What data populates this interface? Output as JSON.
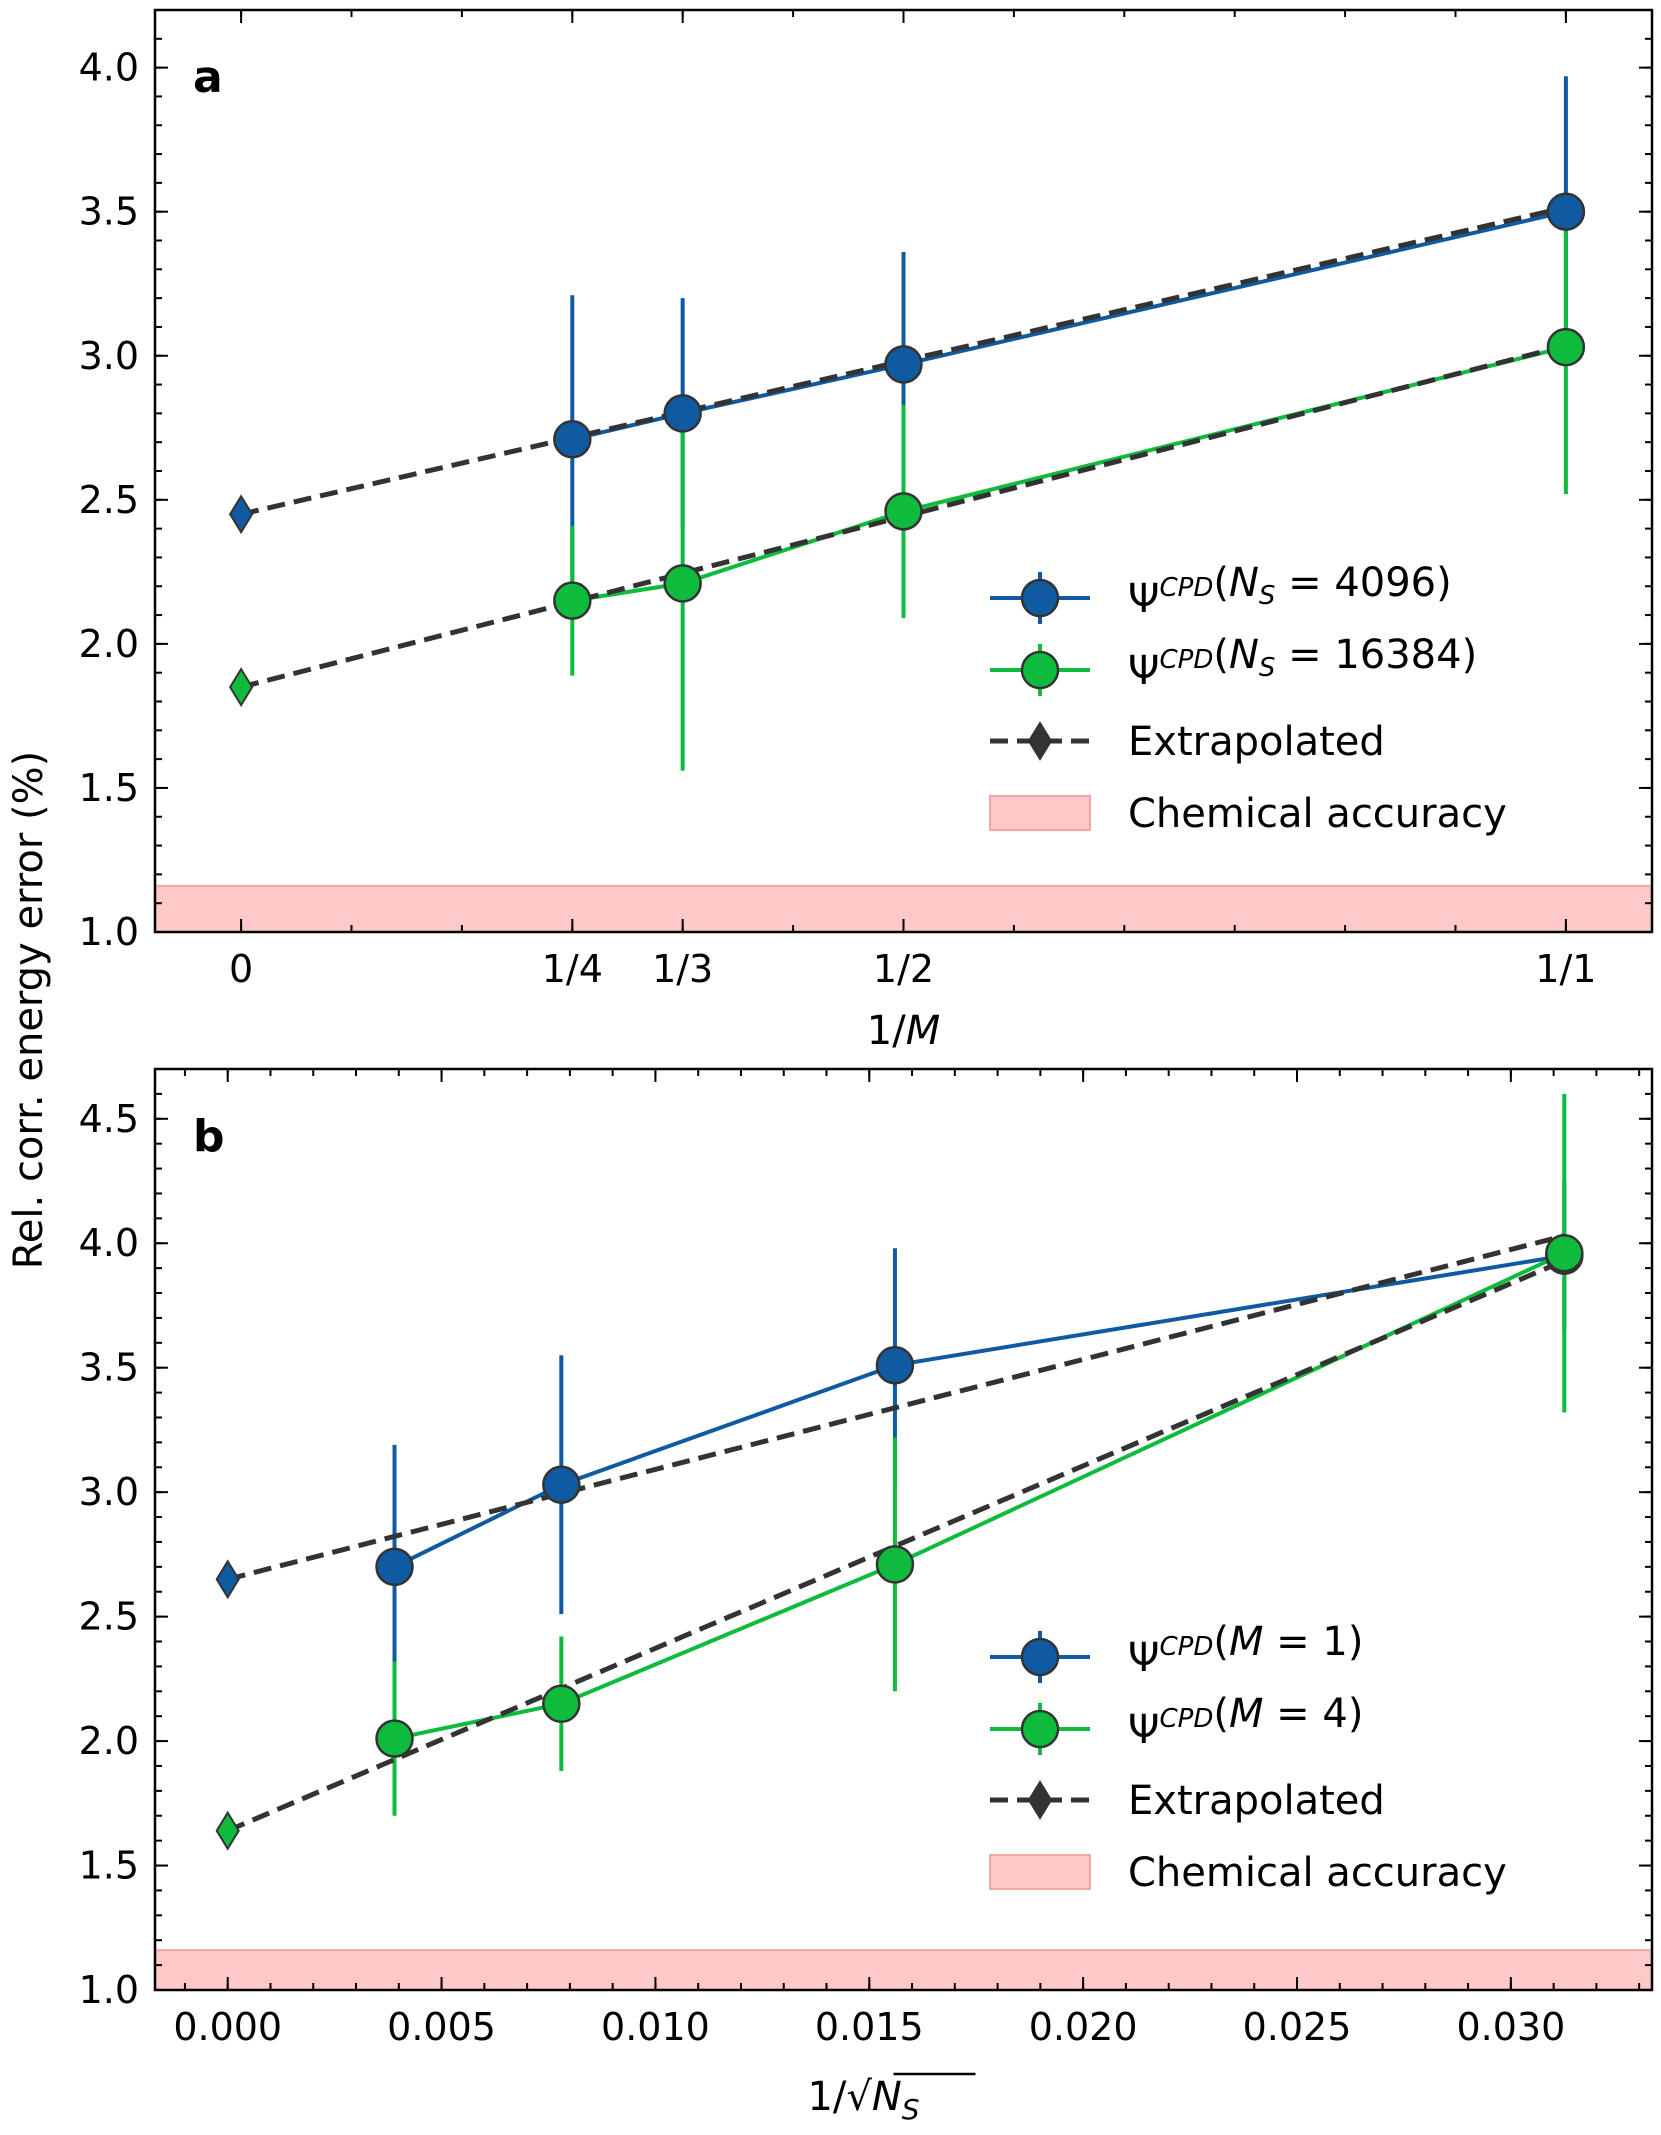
{
  "figure": {
    "shared_ylabel": "Rel. corr. energy error (%)"
  },
  "chart_data": [
    {
      "panel_label": "a",
      "type": "line",
      "xlabel": "1/M",
      "xlim": [
        -0.065,
        1.065
      ],
      "ylim": [
        1.0,
        4.2
      ],
      "xticks": [
        {
          "value": 0,
          "label": "0"
        },
        {
          "value": 0.25,
          "label": "1/4"
        },
        {
          "value": 0.3333,
          "label": "1/3"
        },
        {
          "value": 0.5,
          "label": "1/2"
        },
        {
          "value": 1.0,
          "label": "1/1"
        }
      ],
      "xminor_step": 0.0833333,
      "yticks": [
        1.0,
        1.5,
        2.0,
        2.5,
        3.0,
        3.5,
        4.0
      ],
      "ytick_labels": [
        "1.0",
        "1.5",
        "2.0",
        "2.5",
        "3.0",
        "3.5",
        "4.0"
      ],
      "yminor_step": 0.1,
      "series": [
        {
          "name_base": "Ψ",
          "name_sup": "CPD",
          "name_args": "(N_S = 4096)",
          "color": "#0f5aa0",
          "x": [
            0.25,
            0.3333,
            0.5,
            1.0
          ],
          "y": [
            2.71,
            2.8,
            2.97,
            3.5
          ],
          "err": [
            0.5,
            0.4,
            0.39,
            0.47
          ]
        },
        {
          "name_base": "Ψ",
          "name_sup": "CPD",
          "name_args": "(N_S = 16384)",
          "color": "#0fbb3c",
          "x": [
            0.25,
            0.3333,
            0.5,
            1.0
          ],
          "y": [
            2.15,
            2.21,
            2.46,
            3.03
          ],
          "err": [
            0.26,
            0.65,
            0.37,
            0.51
          ]
        }
      ],
      "fits": [
        {
          "x": [
            0,
            0.25,
            0.3333,
            0.5,
            1.0
          ],
          "y": [
            2.45,
            2.716,
            2.805,
            2.982,
            3.515
          ]
        },
        {
          "x": [
            0,
            0.25,
            0.3333,
            0.5,
            1.0
          ],
          "y": [
            1.85,
            2.146,
            2.245,
            2.442,
            3.035
          ]
        }
      ],
      "extrapolated": [
        {
          "x": 0,
          "y": 2.45,
          "color": "#0f5aa0"
        },
        {
          "x": 0,
          "y": 1.85,
          "color": "#0fbb3c"
        }
      ],
      "chemical_accuracy": 1.16,
      "legend": {
        "location": "lower-right",
        "extrapolated": "Extrapolated",
        "chemical": "Chemical accuracy"
      }
    },
    {
      "panel_label": "b",
      "type": "line",
      "xlabel": "1/√N_S",
      "xlim": [
        -0.0017,
        0.0333
      ],
      "ylim": [
        1.0,
        4.7
      ],
      "xticks": [
        {
          "value": 0.0,
          "label": "0.000"
        },
        {
          "value": 0.005,
          "label": "0.005"
        },
        {
          "value": 0.01,
          "label": "0.010"
        },
        {
          "value": 0.015,
          "label": "0.015"
        },
        {
          "value": 0.02,
          "label": "0.020"
        },
        {
          "value": 0.025,
          "label": "0.025"
        },
        {
          "value": 0.03,
          "label": "0.030"
        }
      ],
      "xminor_step": 0.001,
      "yticks": [
        1.0,
        1.5,
        2.0,
        2.5,
        3.0,
        3.5,
        4.0,
        4.5
      ],
      "ytick_labels": [
        "1.0",
        "1.5",
        "2.0",
        "2.5",
        "3.0",
        "3.5",
        "4.0",
        "4.5"
      ],
      "yminor_step": 0.1,
      "series": [
        {
          "name_base": "Ψ",
          "name_sup": "CPD",
          "name_args": "(M = 1)",
          "color": "#0f5aa0",
          "x": [
            0.0039,
            0.0078,
            0.0156,
            0.03125
          ],
          "y": [
            2.7,
            3.03,
            3.51,
            3.95
          ],
          "err": [
            0.49,
            0.52,
            0.47,
            0.3
          ]
        },
        {
          "name_base": "Ψ",
          "name_sup": "CPD",
          "name_args": "(M = 4)",
          "color": "#0fbb3c",
          "x": [
            0.0039,
            0.0078,
            0.0156,
            0.03125
          ],
          "y": [
            2.01,
            2.15,
            2.71,
            3.96
          ],
          "err": [
            0.31,
            0.27,
            0.51,
            0.64
          ]
        }
      ],
      "fits": [
        {
          "x": [
            0,
            0.03125
          ],
          "y": [
            2.65,
            4.03
          ]
        },
        {
          "x": [
            0,
            0.03125
          ],
          "y": [
            1.64,
            3.93
          ]
        }
      ],
      "extrapolated": [
        {
          "x": 0,
          "y": 2.65,
          "color": "#0f5aa0"
        },
        {
          "x": 0,
          "y": 1.64,
          "color": "#0fbb3c"
        }
      ],
      "chemical_accuracy": 1.16,
      "legend": {
        "location": "lower-right",
        "extrapolated": "Extrapolated",
        "chemical": "Chemical accuracy"
      }
    }
  ]
}
